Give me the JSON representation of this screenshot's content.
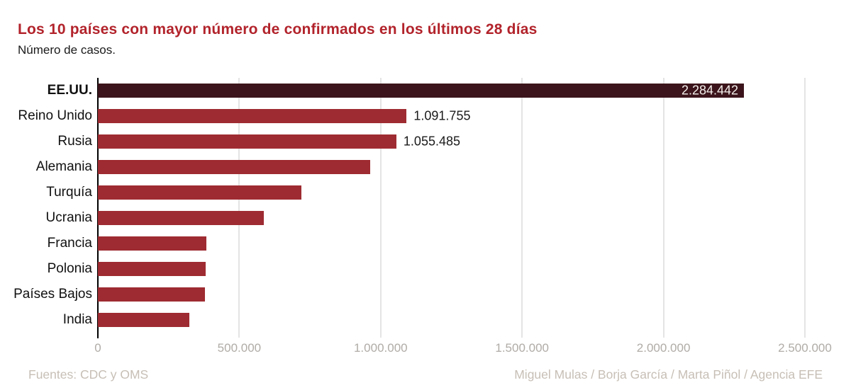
{
  "header": {
    "title": "Los 10 países con mayor número de confirmados en los últimos 28 días",
    "subtitle": "Número de casos."
  },
  "chart_data": {
    "type": "bar",
    "orientation": "horizontal",
    "title": "Los 10 países con mayor número de confirmados en los últimos 28 días",
    "subtitle": "Número de casos.",
    "categories": [
      "EE.UU.",
      "Reino Unido",
      "Rusia",
      "Alemania",
      "Turquía",
      "Ucrania",
      "Francia",
      "Polonia",
      "Países Bajos",
      "India"
    ],
    "values": [
      2284442,
      1091755,
      1055485,
      962000,
      719000,
      587000,
      384000,
      381000,
      378000,
      323000
    ],
    "value_labels": [
      "2.284.442",
      "1.091.755",
      "1.055.485",
      "",
      "",
      "",
      "",
      "",
      "",
      ""
    ],
    "value_label_placement": [
      "inside",
      "outside",
      "outside",
      "none",
      "none",
      "none",
      "none",
      "none",
      "none",
      "none"
    ],
    "highlight_index": 0,
    "xlim": [
      0,
      2500000
    ],
    "x_tick_values": [
      0,
      500000,
      1000000,
      1500000,
      2000000,
      2500000
    ],
    "x_tick_labels": [
      "0",
      "500.000",
      "1.000.000",
      "1.500.000",
      "2.000.000",
      "2.500.000"
    ],
    "grid": "vertical",
    "legend": "none",
    "xlabel": "",
    "ylabel": ""
  },
  "footer": {
    "source": "Fuentes: CDC y OMS",
    "credits": "Miguel Mulas / Borja García / Marta Piñol / Agencia EFE"
  },
  "colors": {
    "title": "#b2232b",
    "bar": "#9e2b31",
    "bar_highlight": "#3b151b",
    "value_label_inside": "#f4efec",
    "value_label_outside": "#1a1a1a",
    "axis": "#000000",
    "gridline": "#c9c9c9",
    "tick_label": "#b0aca7",
    "footer_text": "#c7bfb6"
  }
}
